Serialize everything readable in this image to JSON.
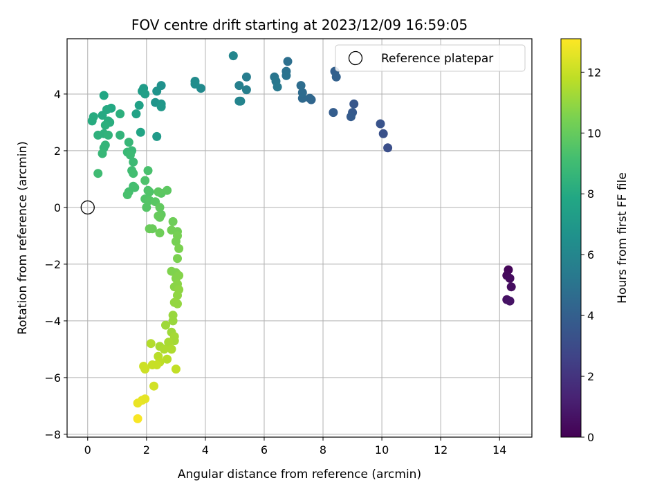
{
  "chart_data": {
    "type": "scatter",
    "title": "FOV centre drift starting at 2023/12/09 16:59:05",
    "xlabel": "Angular distance from reference (arcmin)",
    "ylabel": "Rotation from reference (arcmin)",
    "xlim": [
      -0.7,
      15.1
    ],
    "ylim": [
      -8.1,
      5.95
    ],
    "xticks": [
      0,
      2,
      4,
      6,
      8,
      10,
      12,
      14
    ],
    "yticks": [
      -8,
      -6,
      -4,
      -2,
      0,
      2,
      4
    ],
    "grid": true,
    "legend": {
      "position": "top-right",
      "entries": [
        "Reference platepar"
      ]
    },
    "reference_point": {
      "x": 0,
      "y": 0,
      "label": "Reference platepar"
    },
    "colorbar": {
      "label": "Hours from first FF file",
      "min": 0,
      "max": 13.1,
      "ticks": [
        0,
        2,
        4,
        6,
        8,
        10,
        12
      ],
      "colormap": "viridis"
    },
    "points": [
      {
        "x": 14.3,
        "y": -2.2,
        "h": 0.2
      },
      {
        "x": 14.25,
        "y": -2.4,
        "h": 0.3
      },
      {
        "x": 14.35,
        "y": -2.5,
        "h": 0.4
      },
      {
        "x": 14.4,
        "y": -2.8,
        "h": 0.5
      },
      {
        "x": 14.25,
        "y": -3.25,
        "h": 0.6
      },
      {
        "x": 14.35,
        "y": -3.3,
        "h": 0.7
      },
      {
        "x": 10.2,
        "y": 2.1,
        "h": 3.2
      },
      {
        "x": 10.05,
        "y": 2.6,
        "h": 3.3
      },
      {
        "x": 9.95,
        "y": 2.95,
        "h": 3.4
      },
      {
        "x": 9.05,
        "y": 3.65,
        "h": 3.6
      },
      {
        "x": 9.0,
        "y": 3.35,
        "h": 3.7
      },
      {
        "x": 8.95,
        "y": 3.2,
        "h": 3.8
      },
      {
        "x": 8.35,
        "y": 3.35,
        "h": 3.9
      },
      {
        "x": 8.4,
        "y": 4.8,
        "h": 4.0
      },
      {
        "x": 8.45,
        "y": 4.6,
        "h": 4.1
      },
      {
        "x": 7.6,
        "y": 3.8,
        "h": 4.3
      },
      {
        "x": 7.55,
        "y": 3.85,
        "h": 4.4
      },
      {
        "x": 7.3,
        "y": 3.85,
        "h": 4.5
      },
      {
        "x": 7.3,
        "y": 4.05,
        "h": 4.6
      },
      {
        "x": 7.25,
        "y": 4.3,
        "h": 4.7
      },
      {
        "x": 6.8,
        "y": 5.15,
        "h": 4.8
      },
      {
        "x": 6.75,
        "y": 4.8,
        "h": 4.9
      },
      {
        "x": 6.75,
        "y": 4.65,
        "h": 5.0
      },
      {
        "x": 6.35,
        "y": 4.6,
        "h": 5.1
      },
      {
        "x": 6.4,
        "y": 4.45,
        "h": 5.2
      },
      {
        "x": 6.45,
        "y": 4.25,
        "h": 5.3
      },
      {
        "x": 5.4,
        "y": 4.6,
        "h": 5.5
      },
      {
        "x": 5.4,
        "y": 4.15,
        "h": 5.6
      },
      {
        "x": 5.15,
        "y": 4.3,
        "h": 5.7
      },
      {
        "x": 5.2,
        "y": 3.75,
        "h": 5.8
      },
      {
        "x": 5.15,
        "y": 3.75,
        "h": 5.9
      },
      {
        "x": 4.95,
        "y": 5.35,
        "h": 6.0
      },
      {
        "x": 3.85,
        "y": 4.2,
        "h": 6.2
      },
      {
        "x": 3.65,
        "y": 4.45,
        "h": 6.3
      },
      {
        "x": 3.65,
        "y": 4.35,
        "h": 6.4
      },
      {
        "x": 2.5,
        "y": 4.3,
        "h": 6.6
      },
      {
        "x": 2.35,
        "y": 4.1,
        "h": 6.7
      },
      {
        "x": 2.3,
        "y": 3.7,
        "h": 6.8
      },
      {
        "x": 2.5,
        "y": 3.65,
        "h": 6.9
      },
      {
        "x": 2.5,
        "y": 3.55,
        "h": 7.0
      },
      {
        "x": 2.35,
        "y": 2.5,
        "h": 7.1
      },
      {
        "x": 1.9,
        "y": 4.2,
        "h": 7.2
      },
      {
        "x": 1.85,
        "y": 4.1,
        "h": 7.3
      },
      {
        "x": 1.95,
        "y": 4.0,
        "h": 7.4
      },
      {
        "x": 1.75,
        "y": 3.6,
        "h": 7.5
      },
      {
        "x": 1.65,
        "y": 3.3,
        "h": 7.6
      },
      {
        "x": 1.8,
        "y": 2.65,
        "h": 7.7
      },
      {
        "x": 0.55,
        "y": 3.95,
        "h": 7.8
      },
      {
        "x": 0.8,
        "y": 3.5,
        "h": 7.9
      },
      {
        "x": 0.65,
        "y": 3.45,
        "h": 8.0
      },
      {
        "x": 0.5,
        "y": 3.25,
        "h": 8.0
      },
      {
        "x": 0.2,
        "y": 3.2,
        "h": 8.1
      },
      {
        "x": 0.15,
        "y": 3.05,
        "h": 8.1
      },
      {
        "x": 0.7,
        "y": 3.05,
        "h": 8.2
      },
      {
        "x": 0.75,
        "y": 3.0,
        "h": 8.2
      },
      {
        "x": 0.6,
        "y": 2.9,
        "h": 8.3
      },
      {
        "x": 1.1,
        "y": 3.3,
        "h": 8.3
      },
      {
        "x": 0.35,
        "y": 2.55,
        "h": 8.4
      },
      {
        "x": 0.55,
        "y": 2.6,
        "h": 8.4
      },
      {
        "x": 0.7,
        "y": 2.55,
        "h": 8.5
      },
      {
        "x": 1.1,
        "y": 2.55,
        "h": 8.5
      },
      {
        "x": 0.55,
        "y": 2.1,
        "h": 8.6
      },
      {
        "x": 0.6,
        "y": 2.2,
        "h": 8.6
      },
      {
        "x": 0.5,
        "y": 1.9,
        "h": 8.7
      },
      {
        "x": 1.4,
        "y": 2.3,
        "h": 8.7
      },
      {
        "x": 1.35,
        "y": 1.95,
        "h": 8.8
      },
      {
        "x": 1.5,
        "y": 2.0,
        "h": 8.8
      },
      {
        "x": 1.45,
        "y": 1.85,
        "h": 8.9
      },
      {
        "x": 1.55,
        "y": 1.6,
        "h": 8.9
      },
      {
        "x": 0.35,
        "y": 1.2,
        "h": 9.0
      },
      {
        "x": 1.5,
        "y": 1.3,
        "h": 9.0
      },
      {
        "x": 1.55,
        "y": 1.2,
        "h": 9.1
      },
      {
        "x": 1.55,
        "y": 0.75,
        "h": 9.1
      },
      {
        "x": 1.6,
        "y": 0.7,
        "h": 9.2
      },
      {
        "x": 1.4,
        "y": 0.55,
        "h": 9.2
      },
      {
        "x": 1.35,
        "y": 0.45,
        "h": 9.3
      },
      {
        "x": 2.05,
        "y": 1.3,
        "h": 9.3
      },
      {
        "x": 1.95,
        "y": 0.95,
        "h": 9.4
      },
      {
        "x": 2.05,
        "y": 0.6,
        "h": 9.4
      },
      {
        "x": 2.1,
        "y": 0.55,
        "h": 9.5
      },
      {
        "x": 1.95,
        "y": 0.3,
        "h": 9.5
      },
      {
        "x": 2.1,
        "y": 0.25,
        "h": 9.6
      },
      {
        "x": 2.0,
        "y": 0.0,
        "h": 9.6
      },
      {
        "x": 2.3,
        "y": 0.2,
        "h": 9.7
      },
      {
        "x": 2.5,
        "y": 0.5,
        "h": 9.7
      },
      {
        "x": 2.4,
        "y": 0.55,
        "h": 9.8
      },
      {
        "x": 2.7,
        "y": 0.6,
        "h": 9.8
      },
      {
        "x": 2.45,
        "y": 0.0,
        "h": 9.9
      },
      {
        "x": 2.5,
        "y": -0.25,
        "h": 9.9
      },
      {
        "x": 2.45,
        "y": -0.35,
        "h": 10.0
      },
      {
        "x": 2.4,
        "y": -0.3,
        "h": 10.0
      },
      {
        "x": 2.1,
        "y": -0.75,
        "h": 10.1
      },
      {
        "x": 2.2,
        "y": -0.75,
        "h": 10.1
      },
      {
        "x": 2.45,
        "y": -0.9,
        "h": 10.2
      },
      {
        "x": 2.9,
        "y": -0.5,
        "h": 10.2
      },
      {
        "x": 2.85,
        "y": -0.8,
        "h": 10.3
      },
      {
        "x": 3.05,
        "y": -0.85,
        "h": 10.3
      },
      {
        "x": 3.05,
        "y": -1.0,
        "h": 10.4
      },
      {
        "x": 3.0,
        "y": -1.2,
        "h": 10.4
      },
      {
        "x": 3.1,
        "y": -1.45,
        "h": 10.5
      },
      {
        "x": 3.05,
        "y": -1.8,
        "h": 10.5
      },
      {
        "x": 2.85,
        "y": -2.25,
        "h": 10.6
      },
      {
        "x": 3.0,
        "y": -2.3,
        "h": 10.6
      },
      {
        "x": 3.1,
        "y": -2.4,
        "h": 10.7
      },
      {
        "x": 3.0,
        "y": -2.5,
        "h": 10.7
      },
      {
        "x": 3.05,
        "y": -2.7,
        "h": 10.8
      },
      {
        "x": 2.95,
        "y": -2.8,
        "h": 10.8
      },
      {
        "x": 3.1,
        "y": -2.9,
        "h": 10.9
      },
      {
        "x": 3.05,
        "y": -3.1,
        "h": 10.9
      },
      {
        "x": 2.95,
        "y": -3.35,
        "h": 11.0
      },
      {
        "x": 3.05,
        "y": -3.4,
        "h": 11.0
      },
      {
        "x": 2.9,
        "y": -3.8,
        "h": 11.1
      },
      {
        "x": 2.9,
        "y": -4.0,
        "h": 11.1
      },
      {
        "x": 2.65,
        "y": -4.15,
        "h": 11.2
      },
      {
        "x": 2.85,
        "y": -4.4,
        "h": 11.2
      },
      {
        "x": 2.95,
        "y": -4.55,
        "h": 11.3
      },
      {
        "x": 2.95,
        "y": -4.7,
        "h": 11.3
      },
      {
        "x": 2.75,
        "y": -4.75,
        "h": 11.4
      },
      {
        "x": 2.45,
        "y": -4.9,
        "h": 11.4
      },
      {
        "x": 2.6,
        "y": -5.0,
        "h": 11.5
      },
      {
        "x": 2.85,
        "y": -5.0,
        "h": 11.5
      },
      {
        "x": 2.15,
        "y": -4.8,
        "h": 11.6
      },
      {
        "x": 2.4,
        "y": -5.25,
        "h": 11.7
      },
      {
        "x": 2.7,
        "y": -5.35,
        "h": 11.7
      },
      {
        "x": 2.45,
        "y": -5.45,
        "h": 11.8
      },
      {
        "x": 3.0,
        "y": -5.7,
        "h": 11.9
      },
      {
        "x": 2.2,
        "y": -5.55,
        "h": 12.0
      },
      {
        "x": 2.35,
        "y": -5.55,
        "h": 12.0
      },
      {
        "x": 1.9,
        "y": -5.6,
        "h": 12.1
      },
      {
        "x": 1.95,
        "y": -5.7,
        "h": 12.1
      },
      {
        "x": 2.25,
        "y": -6.3,
        "h": 12.2
      },
      {
        "x": 1.85,
        "y": -6.8,
        "h": 12.6
      },
      {
        "x": 1.95,
        "y": -6.75,
        "h": 12.6
      },
      {
        "x": 1.7,
        "y": -6.9,
        "h": 12.7
      },
      {
        "x": 1.7,
        "y": -7.45,
        "h": 13.0
      }
    ]
  }
}
